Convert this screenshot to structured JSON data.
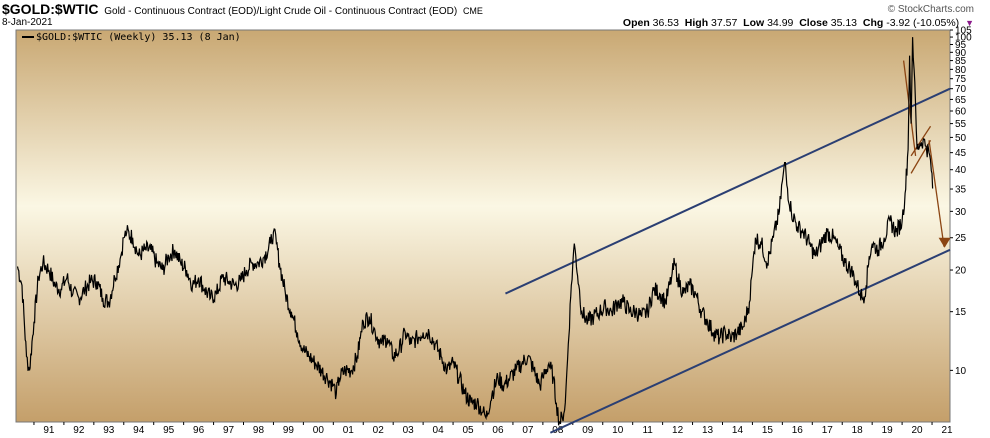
{
  "header": {
    "symbol": "$GOLD:$WTIC",
    "description": "Gold - Continuous Contract (EOD)/Light Crude Oil - Continuous Contract (EOD)",
    "exchange": "CME",
    "date": "8-Jan-2021",
    "brand": "© StockCharts.com"
  },
  "quote": {
    "open_label": "Open",
    "open": "36.53",
    "high_label": "High",
    "high": "37.57",
    "low_label": "Low",
    "low": "34.99",
    "close_label": "Close",
    "close": "35.13",
    "chg_label": "Chg",
    "chg": "-3.92 (-10.05%)",
    "chg_icon": "down-triangle-icon"
  },
  "legend": {
    "label": "$GOLD:$WTIC (Weekly) 35.13 (8 Jan)"
  },
  "colors": {
    "series": "#000000",
    "channel": "#2b3f73",
    "annotation": "#8b4513",
    "bg_top": "#c9a873",
    "bg_mid": "#fbf7e4",
    "bg_bottom": "#c49f6a"
  },
  "chart_data": {
    "type": "line",
    "title": "$GOLD:$WTIC",
    "scale": "log",
    "ylim": [
      7,
      105
    ],
    "y_ticks": [
      10,
      15,
      20,
      25,
      30,
      35,
      40,
      45,
      50,
      55,
      60,
      65,
      70,
      75,
      80,
      85,
      90,
      95,
      100,
      105
    ],
    "x_ticks": [
      "91",
      "92",
      "93",
      "94",
      "95",
      "96",
      "97",
      "98",
      "99",
      "00",
      "01",
      "02",
      "03",
      "04",
      "05",
      "06",
      "07",
      "08",
      "09",
      "10",
      "11",
      "12",
      "13",
      "14",
      "15",
      "16",
      "17",
      "18",
      "19",
      "20",
      "21"
    ],
    "xlim": [
      1990.4,
      2021.6
    ],
    "grid": false,
    "legend_position": "top-left",
    "series": [
      {
        "name": "$GOLD:$WTIC (Weekly)",
        "points": [
          [
            1990.45,
            20.5
          ],
          [
            1990.6,
            18
          ],
          [
            1990.75,
            11
          ],
          [
            1990.85,
            10
          ],
          [
            1991.0,
            14
          ],
          [
            1991.15,
            19
          ],
          [
            1991.3,
            21
          ],
          [
            1991.5,
            20
          ],
          [
            1991.7,
            18
          ],
          [
            1991.9,
            17.5
          ],
          [
            1992.1,
            19
          ],
          [
            1992.3,
            17
          ],
          [
            1992.5,
            16.5
          ],
          [
            1992.7,
            17.5
          ],
          [
            1992.9,
            18.5
          ],
          [
            1993.1,
            18.5
          ],
          [
            1993.3,
            16.5
          ],
          [
            1993.5,
            16
          ],
          [
            1993.7,
            19
          ],
          [
            1993.9,
            22
          ],
          [
            1994.0,
            25
          ],
          [
            1994.1,
            26
          ],
          [
            1994.3,
            25
          ],
          [
            1994.5,
            22
          ],
          [
            1994.7,
            23
          ],
          [
            1994.9,
            23
          ],
          [
            1995.1,
            21
          ],
          [
            1995.3,
            20
          ],
          [
            1995.5,
            22
          ],
          [
            1995.7,
            23
          ],
          [
            1995.9,
            21
          ],
          [
            1996.1,
            20
          ],
          [
            1996.3,
            18
          ],
          [
            1996.5,
            19
          ],
          [
            1996.7,
            17.5
          ],
          [
            1996.9,
            16.5
          ],
          [
            1997.1,
            17
          ],
          [
            1997.3,
            19
          ],
          [
            1997.5,
            18.5
          ],
          [
            1997.7,
            18
          ],
          [
            1997.9,
            18.5
          ],
          [
            1998.1,
            20
          ],
          [
            1998.3,
            21
          ],
          [
            1998.5,
            21
          ],
          [
            1998.7,
            22
          ],
          [
            1998.9,
            24
          ],
          [
            1999.0,
            26
          ],
          [
            1999.1,
            24
          ],
          [
            1999.2,
            21
          ],
          [
            1999.4,
            17
          ],
          [
            1999.6,
            15
          ],
          [
            1999.8,
            13
          ],
          [
            2000.0,
            11.5
          ],
          [
            2000.2,
            11
          ],
          [
            2000.4,
            10.5
          ],
          [
            2000.6,
            10
          ],
          [
            2000.8,
            9.5
          ],
          [
            2001.0,
            9
          ],
          [
            2001.1,
            8.5
          ],
          [
            2001.2,
            9.5
          ],
          [
            2001.4,
            10
          ],
          [
            2001.6,
            10
          ],
          [
            2001.8,
            11
          ],
          [
            2001.9,
            12.5
          ],
          [
            2002.0,
            14
          ],
          [
            2002.2,
            14.5
          ],
          [
            2002.4,
            13
          ],
          [
            2002.6,
            12
          ],
          [
            2002.8,
            12.5
          ],
          [
            2003.0,
            11
          ],
          [
            2003.2,
            11.5
          ],
          [
            2003.4,
            13
          ],
          [
            2003.6,
            12
          ],
          [
            2003.8,
            12.5
          ],
          [
            2004.0,
            13
          ],
          [
            2004.2,
            13
          ],
          [
            2004.4,
            12
          ],
          [
            2004.6,
            11
          ],
          [
            2004.8,
            10
          ],
          [
            2005.0,
            10.5
          ],
          [
            2005.2,
            9.5
          ],
          [
            2005.4,
            8.5
          ],
          [
            2005.6,
            8
          ],
          [
            2005.8,
            8
          ],
          [
            2006.0,
            7.5
          ],
          [
            2006.1,
            7.2
          ],
          [
            2006.3,
            8.5
          ],
          [
            2006.5,
            9.5
          ],
          [
            2006.7,
            9
          ],
          [
            2006.9,
            9.5
          ],
          [
            2007.1,
            10
          ],
          [
            2007.3,
            10.5
          ],
          [
            2007.5,
            11
          ],
          [
            2007.7,
            10
          ],
          [
            2007.9,
            9
          ],
          [
            2008.0,
            9.5
          ],
          [
            2008.2,
            10.5
          ],
          [
            2008.35,
            9.5
          ],
          [
            2008.45,
            8
          ],
          [
            2008.55,
            7
          ],
          [
            2008.65,
            7.2
          ],
          [
            2008.75,
            8
          ],
          [
            2008.85,
            12
          ],
          [
            2008.95,
            18
          ],
          [
            2009.05,
            24
          ],
          [
            2009.1,
            22
          ],
          [
            2009.2,
            18
          ],
          [
            2009.3,
            15
          ],
          [
            2009.5,
            14
          ],
          [
            2009.7,
            14.5
          ],
          [
            2009.9,
            15
          ],
          [
            2010.1,
            15.5
          ],
          [
            2010.3,
            15
          ],
          [
            2010.5,
            16
          ],
          [
            2010.7,
            16
          ],
          [
            2010.9,
            15
          ],
          [
            2011.1,
            15
          ],
          [
            2011.3,
            14.5
          ],
          [
            2011.5,
            15
          ],
          [
            2011.7,
            17.5
          ],
          [
            2011.9,
            17
          ],
          [
            2012.1,
            16
          ],
          [
            2012.3,
            19
          ],
          [
            2012.4,
            21
          ],
          [
            2012.5,
            19
          ],
          [
            2012.7,
            17
          ],
          [
            2012.9,
            18
          ],
          [
            2013.1,
            17
          ],
          [
            2013.3,
            15
          ],
          [
            2013.5,
            14
          ],
          [
            2013.7,
            13
          ],
          [
            2013.9,
            12.5
          ],
          [
            2014.1,
            13
          ],
          [
            2014.3,
            12.5
          ],
          [
            2014.5,
            13
          ],
          [
            2014.7,
            13.5
          ],
          [
            2014.9,
            16
          ],
          [
            2015.0,
            20
          ],
          [
            2015.1,
            25
          ],
          [
            2015.3,
            24
          ],
          [
            2015.5,
            21
          ],
          [
            2015.7,
            25
          ],
          [
            2015.9,
            30
          ],
          [
            2016.0,
            37
          ],
          [
            2016.1,
            42
          ],
          [
            2016.15,
            36
          ],
          [
            2016.3,
            30
          ],
          [
            2016.5,
            27
          ],
          [
            2016.7,
            26
          ],
          [
            2016.9,
            24
          ],
          [
            2017.1,
            22
          ],
          [
            2017.3,
            24
          ],
          [
            2017.5,
            26
          ],
          [
            2017.7,
            25
          ],
          [
            2017.9,
            23
          ],
          [
            2018.1,
            21
          ],
          [
            2018.3,
            20
          ],
          [
            2018.5,
            18
          ],
          [
            2018.6,
            17
          ],
          [
            2018.7,
            16.5
          ],
          [
            2018.8,
            18
          ],
          [
            2018.9,
            22
          ],
          [
            2019.0,
            24
          ],
          [
            2019.2,
            23
          ],
          [
            2019.4,
            25
          ],
          [
            2019.6,
            28
          ],
          [
            2019.8,
            26
          ],
          [
            2020.0,
            28
          ],
          [
            2020.1,
            34
          ],
          [
            2020.2,
            46
          ],
          [
            2020.25,
            88
          ],
          [
            2020.3,
            55
          ],
          [
            2020.35,
            100
          ],
          [
            2020.4,
            80
          ],
          [
            2020.5,
            46
          ],
          [
            2020.6,
            48
          ],
          [
            2020.7,
            49
          ],
          [
            2020.8,
            47
          ],
          [
            2020.9,
            45
          ],
          [
            2021.0,
            39
          ],
          [
            2021.02,
            35.13
          ]
        ]
      }
    ],
    "lines": [
      {
        "name": "upper-channel",
        "from": [
          2006.75,
          17.0
        ],
        "to": [
          2021.6,
          70.0
        ]
      },
      {
        "name": "lower-channel",
        "from": [
          2008.25,
          6.5
        ],
        "to": [
          2021.6,
          23.0
        ]
      },
      {
        "name": "upper-flag",
        "from": [
          2020.3,
          44.0
        ],
        "to": [
          2020.95,
          54.0
        ]
      },
      {
        "name": "lower-flag",
        "from": [
          2020.3,
          39.0
        ],
        "to": [
          2020.95,
          49.0
        ]
      },
      {
        "name": "arrow-1",
        "from": [
          2020.05,
          85.0
        ],
        "to": [
          2020.45,
          44.0
        ]
      },
      {
        "name": "arrow-2",
        "from": [
          2020.9,
          49.0
        ],
        "to": [
          2021.4,
          23.5
        ]
      }
    ],
    "target_marker": [
      2021.42,
      23.5
    ]
  }
}
